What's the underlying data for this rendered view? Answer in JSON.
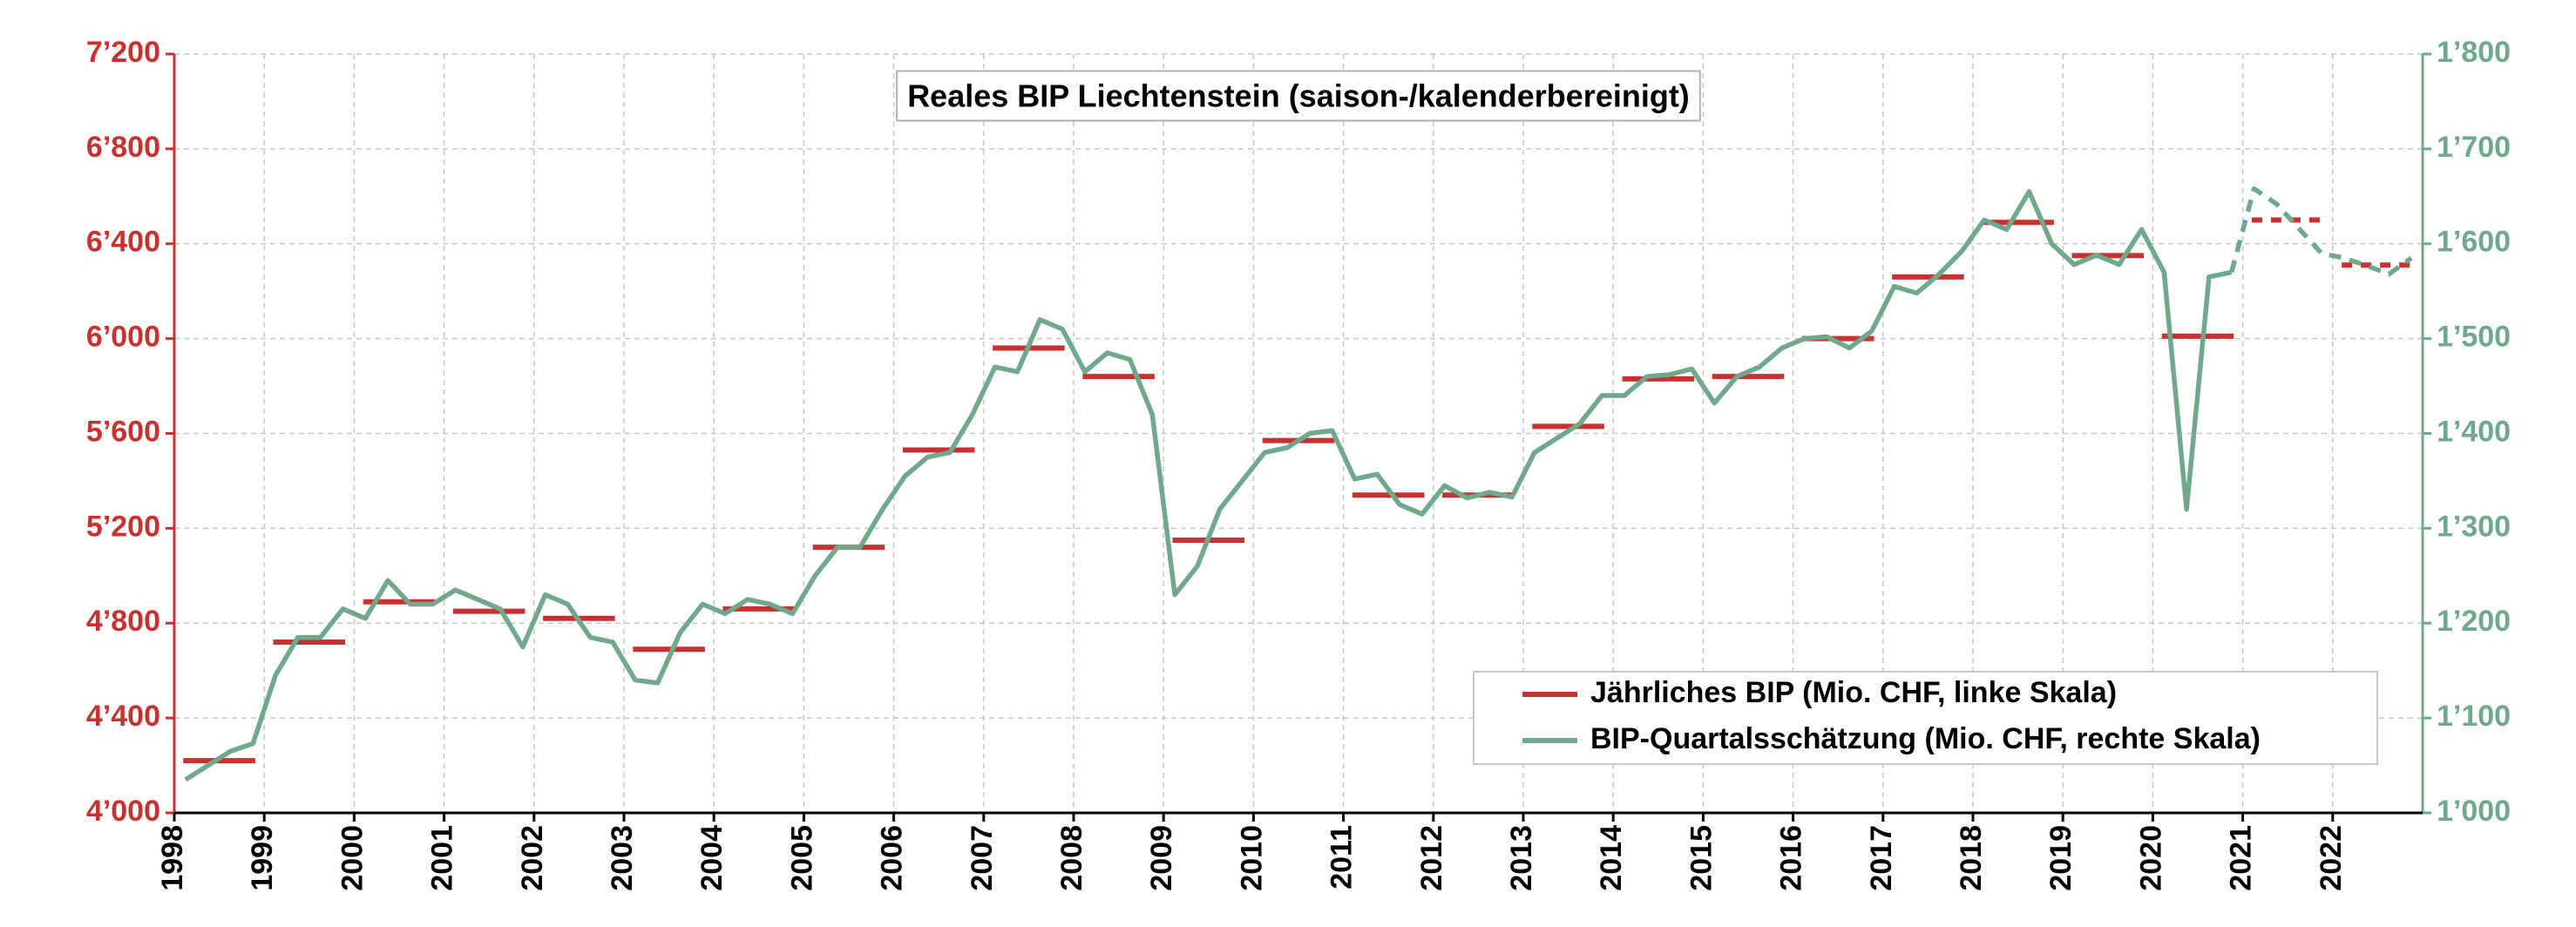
{
  "chart_data": {
    "type": "line",
    "title": "Reales BIP Liechtenstein (saison-/kalenderbereinigt)",
    "xlim": [
      1998,
      2023
    ],
    "xticks": [
      1998,
      1999,
      2000,
      2001,
      2002,
      2003,
      2004,
      2005,
      2006,
      2007,
      2008,
      2009,
      2010,
      2011,
      2012,
      2013,
      2014,
      2015,
      2016,
      2017,
      2018,
      2019,
      2020,
      2021,
      2022
    ],
    "ylim": [
      4000,
      7200
    ],
    "yticks": [
      {
        "value": 4000,
        "label": "4’000"
      },
      {
        "value": 4400,
        "label": "4’400"
      },
      {
        "value": 4800,
        "label": "4’800"
      },
      {
        "value": 5200,
        "label": "5’200"
      },
      {
        "value": 5600,
        "label": "5’600"
      },
      {
        "value": 6000,
        "label": "6’000"
      },
      {
        "value": 6400,
        "label": "6’400"
      },
      {
        "value": 6800,
        "label": "6’800"
      },
      {
        "value": 7200,
        "label": "7’200"
      }
    ],
    "y2lim": [
      1000,
      1800
    ],
    "y2ticks": [
      {
        "value": 1000,
        "label": "1’000"
      },
      {
        "value": 1100,
        "label": "1’100"
      },
      {
        "value": 1200,
        "label": "1’200"
      },
      {
        "value": 1300,
        "label": "1’300"
      },
      {
        "value": 1400,
        "label": "1’400"
      },
      {
        "value": 1500,
        "label": "1’500"
      },
      {
        "value": 1600,
        "label": "1’600"
      },
      {
        "value": 1700,
        "label": "1’700"
      },
      {
        "value": 1800,
        "label": "1’800"
      }
    ],
    "grid": true,
    "legend": "lower right",
    "dashed_from": 2021,
    "series": [
      {
        "name": "Jährliches BIP (Mio. CHF, linke Skala)",
        "type": "hline",
        "color": "#c8312f",
        "x": [
          1998,
          1999,
          2000,
          2001,
          2002,
          2003,
          2004,
          2005,
          2006,
          2007,
          2008,
          2009,
          2010,
          2011,
          2012,
          2013,
          2014,
          2015,
          2016,
          2017,
          2018,
          2019,
          2020,
          2021,
          2022
        ],
        "values": [
          4220,
          4720,
          4890,
          4850,
          4820,
          4690,
          4860,
          5120,
          5530,
          5960,
          5840,
          5150,
          5570,
          5340,
          5340,
          5630,
          5830,
          5840,
          6000,
          6260,
          6490,
          6350,
          6010,
          6500,
          6310
        ]
      },
      {
        "name": "BIP-Quartalsschätzung (Mio. CHF, rechte Skala)",
        "type": "line",
        "color": "#6fa88a",
        "axis": "y2",
        "x": [
          1998.125,
          1998.375,
          1998.625,
          1998.875,
          1999.125,
          1999.375,
          1999.625,
          1999.875,
          2000.125,
          2000.375,
          2000.625,
          2000.875,
          2001.125,
          2001.375,
          2001.625,
          2001.875,
          2002.125,
          2002.375,
          2002.625,
          2002.875,
          2003.125,
          2003.375,
          2003.625,
          2003.875,
          2004.125,
          2004.375,
          2004.625,
          2004.875,
          2005.125,
          2005.375,
          2005.625,
          2005.875,
          2006.125,
          2006.375,
          2006.625,
          2006.875,
          2007.125,
          2007.375,
          2007.625,
          2007.875,
          2008.125,
          2008.375,
          2008.625,
          2008.875,
          2009.125,
          2009.375,
          2009.625,
          2009.875,
          2010.125,
          2010.375,
          2010.625,
          2010.875,
          2011.125,
          2011.375,
          2011.625,
          2011.875,
          2012.125,
          2012.375,
          2012.625,
          2012.875,
          2013.125,
          2013.375,
          2013.625,
          2013.875,
          2014.125,
          2014.375,
          2014.625,
          2014.875,
          2015.125,
          2015.375,
          2015.625,
          2015.875,
          2016.125,
          2016.375,
          2016.625,
          2016.875,
          2017.125,
          2017.375,
          2017.625,
          2017.875,
          2018.125,
          2018.375,
          2018.625,
          2018.875,
          2019.125,
          2019.375,
          2019.625,
          2019.875,
          2020.125,
          2020.375,
          2020.625,
          2020.875,
          2021.125,
          2021.375,
          2021.625,
          2021.875,
          2022.125,
          2022.375,
          2022.625,
          2022.875
        ],
        "values": [
          1035,
          1050,
          1065,
          1073,
          1145,
          1185,
          1185,
          1215,
          1205,
          1245,
          1220,
          1220,
          1235,
          1225,
          1215,
          1175,
          1230,
          1220,
          1185,
          1180,
          1140,
          1137,
          1190,
          1220,
          1210,
          1225,
          1220,
          1210,
          1250,
          1280,
          1280,
          1320,
          1355,
          1375,
          1380,
          1420,
          1470,
          1465,
          1520,
          1510,
          1465,
          1485,
          1478,
          1420,
          1230,
          1260,
          1320,
          1350,
          1380,
          1385,
          1400,
          1403,
          1352,
          1357,
          1325,
          1315,
          1345,
          1332,
          1338,
          1333,
          1380,
          1395,
          1410,
          1440,
          1440,
          1460,
          1462,
          1468,
          1432,
          1460,
          1470,
          1490,
          1500,
          1502,
          1490,
          1508,
          1555,
          1548,
          1568,
          1592,
          1625,
          1615,
          1655,
          1600,
          1578,
          1588,
          1578,
          1615,
          1570,
          1320,
          1565,
          1570,
          1658,
          1642,
          1616,
          1590,
          1585,
          1577,
          1568,
          1585
        ]
      }
    ]
  }
}
